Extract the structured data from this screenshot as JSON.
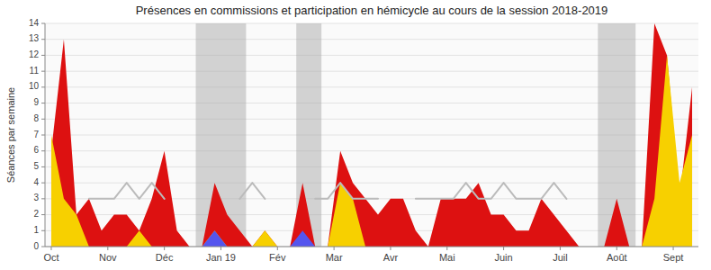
{
  "chart_data": {
    "type": "area",
    "title": "Présences en commissions et participation en hémicycle au cours de la session 2018-2019",
    "y_label": "Séances par semaine",
    "x": [
      0.5,
      1.5,
      2.5,
      3.5,
      4.5,
      5.5,
      6.5,
      7.5,
      8.5,
      9.5,
      10.5,
      11.5,
      12.5,
      13.5,
      14.5,
      15.5,
      16.5,
      17.5,
      18.5,
      19.5,
      20.5,
      21.5,
      22.5,
      23.5,
      24.5,
      25.5,
      26.5,
      27.5,
      28.5,
      29.5,
      30.5,
      31.5,
      32.5,
      33.5,
      34.5,
      35.5,
      36.5,
      37.5,
      38.5,
      39.5,
      40.5,
      41.5,
      42.5,
      43.5,
      44.5,
      45.5,
      46.5,
      47.5,
      48.5,
      49.5,
      50.5,
      51.5
    ],
    "xlim": [
      0,
      52
    ],
    "xticks": [
      {
        "value": 0.5,
        "label": "Oct"
      },
      {
        "value": 5,
        "label": "Nov"
      },
      {
        "value": 9.5,
        "label": "Déc"
      },
      {
        "value": 14,
        "label": "Jan 19"
      },
      {
        "value": 18.5,
        "label": "Fév"
      },
      {
        "value": 23,
        "label": "Mar"
      },
      {
        "value": 27.5,
        "label": "Avr"
      },
      {
        "value": 32,
        "label": "Mai"
      },
      {
        "value": 36.5,
        "label": "Juin"
      },
      {
        "value": 41,
        "label": "Juil"
      },
      {
        "value": 45.5,
        "label": "Août"
      },
      {
        "value": 50,
        "label": "Sept"
      }
    ],
    "ylim": [
      0,
      14
    ],
    "yticks": [
      0,
      1,
      2,
      3,
      4,
      5,
      6,
      7,
      8,
      9,
      10,
      11,
      12,
      13,
      14
    ],
    "grid": true,
    "shaded_ranges": {
      "color": "#aaaaaa",
      "ranges": [
        [
          12,
          16
        ],
        [
          20,
          22
        ],
        [
          44,
          47
        ]
      ]
    },
    "series": [
      {
        "type": "area",
        "color": "#dd1111",
        "values": [
          6,
          13,
          2,
          3,
          1,
          2,
          2,
          1,
          3,
          6,
          1,
          0,
          0,
          4,
          2,
          1,
          0,
          1,
          0,
          0,
          4,
          0,
          0,
          6,
          4,
          3,
          2,
          3,
          3,
          1,
          0,
          3,
          3,
          3,
          4,
          2,
          2,
          1,
          1,
          3,
          2,
          1,
          0,
          0,
          0,
          3,
          0,
          0,
          14,
          12,
          3,
          10
        ]
      },
      {
        "type": "area",
        "color": "#f7d000",
        "values": [
          7,
          3,
          2,
          0,
          0,
          0,
          0,
          1,
          0,
          0,
          0,
          0,
          0,
          1,
          0,
          0,
          0,
          1,
          0,
          0,
          0,
          0,
          0,
          4,
          3,
          0,
          0,
          0,
          0,
          0,
          0,
          0,
          0,
          0,
          0,
          0,
          0,
          0,
          0,
          0,
          0,
          0,
          0,
          0,
          0,
          0,
          0,
          0,
          3,
          12,
          4,
          7
        ]
      },
      {
        "type": "area",
        "color": "#5555ee",
        "values": [
          0,
          0,
          0,
          0,
          0,
          0,
          0,
          0,
          0,
          0,
          0,
          0,
          0,
          1,
          0,
          0,
          0,
          0,
          0,
          0,
          1,
          0,
          0,
          0,
          0,
          0,
          0,
          0,
          0,
          0,
          0,
          0,
          0,
          0,
          0,
          0,
          0,
          0,
          0,
          0,
          0,
          0,
          0,
          0,
          0,
          0,
          0,
          0,
          0,
          0,
          0,
          0
        ]
      },
      {
        "type": "line",
        "color": "#bbbbbb",
        "values": [
          null,
          null,
          null,
          3,
          3,
          3,
          4,
          3,
          4,
          3,
          null,
          null,
          null,
          null,
          null,
          3,
          4,
          3,
          null,
          null,
          null,
          3,
          3,
          4,
          3,
          3,
          3,
          null,
          null,
          3,
          3,
          3,
          3,
          4,
          3,
          3,
          4,
          3,
          3,
          3,
          4,
          3,
          null,
          null,
          null,
          null,
          null,
          null,
          null,
          null,
          null,
          null
        ]
      }
    ]
  }
}
